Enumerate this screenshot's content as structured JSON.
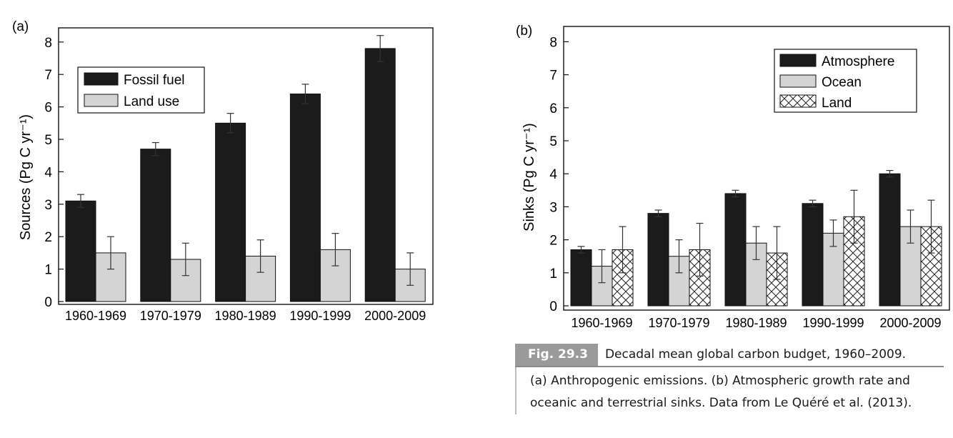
{
  "colors": {
    "fossil": "#1b1b1b",
    "land_use": "#d4d4d4",
    "atmosphere": "#1b1b1b",
    "ocean": "#d4d4d4",
    "land": "#ffffff",
    "caption_tag": "#9a9a9a"
  },
  "caption": {
    "tag": "Fig. 29.3",
    "title": "Decadal mean global carbon budget, 1960–2009.",
    "body": "(a) Anthropogenic emissions. (b) Atmospheric growth rate and oceanic and terrestrial sinks. Data from Le Quéré et al. (2013)."
  },
  "chart_data": [
    {
      "type": "bar",
      "panel_label": "(a)",
      "ylabel": "Sources (Pg C yr⁻¹)",
      "ylim": [
        0,
        8.5
      ],
      "yticks": [
        "0",
        "1",
        "2",
        "3",
        "4",
        "5",
        "6",
        "7",
        "8"
      ],
      "categories": [
        "1960-1969",
        "1970-1979",
        "1980-1989",
        "1990-1999",
        "2000-2009"
      ],
      "legend_position": "top-left",
      "series": [
        {
          "name": "Fossil fuel",
          "values": [
            3.1,
            4.7,
            5.5,
            6.4,
            7.8
          ],
          "errors": [
            0.2,
            0.2,
            0.3,
            0.3,
            0.4
          ]
        },
        {
          "name": "Land use",
          "values": [
            1.5,
            1.3,
            1.4,
            1.6,
            1.0
          ],
          "errors": [
            0.5,
            0.5,
            0.5,
            0.5,
            0.5
          ]
        }
      ]
    },
    {
      "type": "bar",
      "panel_label": "(b)",
      "ylabel": "Sinks (Pg C yr⁻¹)",
      "ylim": [
        0,
        8.5
      ],
      "yticks": [
        "0",
        "1",
        "2",
        "3",
        "4",
        "5",
        "6",
        "7",
        "8"
      ],
      "categories": [
        "1960-1969",
        "1970-1979",
        "1980-1989",
        "1990-1999",
        "2000-2009"
      ],
      "legend_position": "top-right",
      "series": [
        {
          "name": "Atmosphere",
          "values": [
            1.7,
            2.8,
            3.4,
            3.1,
            4.0
          ],
          "errors": [
            0.1,
            0.1,
            0.1,
            0.1,
            0.1
          ]
        },
        {
          "name": "Ocean",
          "values": [
            1.2,
            1.5,
            1.9,
            2.2,
            2.4
          ],
          "errors": [
            0.5,
            0.5,
            0.5,
            0.4,
            0.5
          ]
        },
        {
          "name": "Land",
          "values": [
            1.7,
            1.7,
            1.6,
            2.7,
            2.4
          ],
          "errors": [
            0.7,
            0.8,
            0.8,
            0.8,
            0.8
          ]
        }
      ]
    }
  ]
}
